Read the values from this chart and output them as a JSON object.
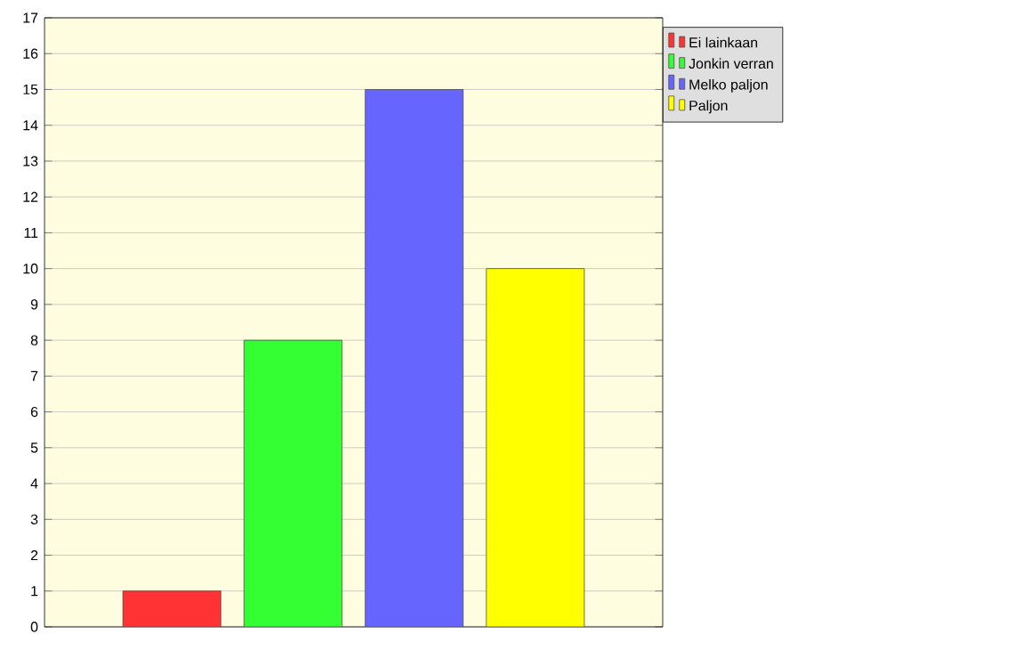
{
  "chart_data": {
    "type": "bar",
    "categories": [
      null
    ],
    "series": [
      {
        "name": "Ei lainkaan",
        "color": "#ff3333",
        "values": [
          1
        ]
      },
      {
        "name": "Jonkin verran",
        "color": "#33ff33",
        "values": [
          8
        ]
      },
      {
        "name": "Melko paljon",
        "color": "#6666ff",
        "values": [
          15
        ]
      },
      {
        "name": "Paljon",
        "color": "#ffff00",
        "values": [
          10
        ]
      }
    ],
    "ylim": [
      0,
      17
    ],
    "yticks": [
      0,
      1,
      2,
      3,
      4,
      5,
      6,
      7,
      8,
      9,
      10,
      11,
      12,
      13,
      14,
      15,
      16,
      17
    ],
    "grid": "y",
    "legend": "top right",
    "tick_labels": "y"
  }
}
